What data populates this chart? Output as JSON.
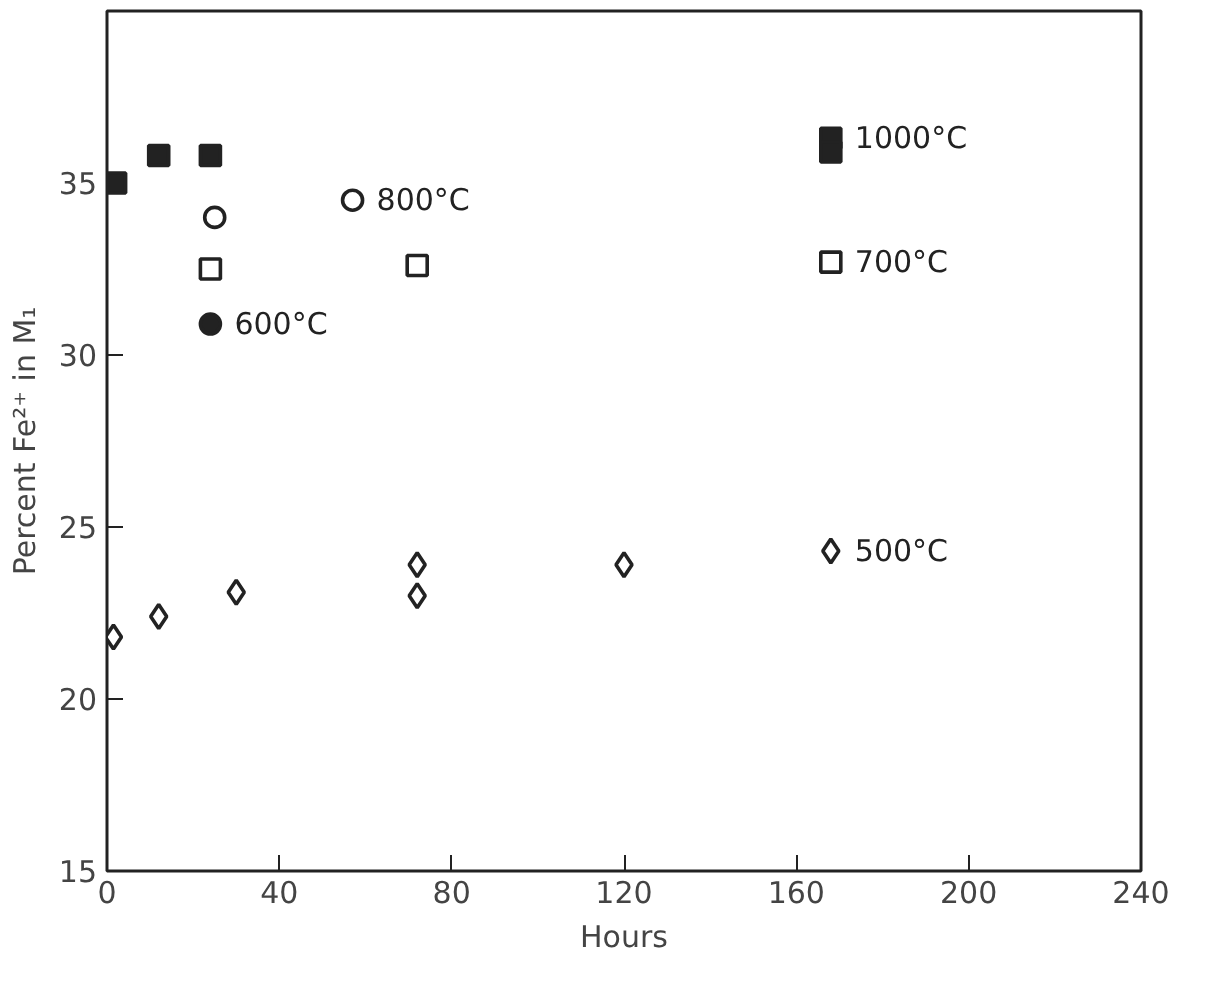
{
  "chart_data": {
    "type": "scatter",
    "xlabel": "Hours",
    "ylabel": "Percent Fe²⁺ in M₁",
    "xlim": [
      0,
      240
    ],
    "ylim": [
      15,
      40
    ],
    "xticks": [
      0,
      40,
      80,
      120,
      160,
      200,
      240
    ],
    "yticks": [
      15,
      20,
      25,
      30,
      35
    ],
    "series": [
      {
        "name": "1000°C",
        "color": "#222222",
        "marker": "square",
        "x": [
          2,
          12,
          24,
          168,
          168
        ],
        "values": [
          35.0,
          35.8,
          35.8,
          36.3,
          35.9
        ]
      },
      {
        "name": "800°C",
        "color": "#ffffff",
        "marker": "circle",
        "x": [
          25,
          57
        ],
        "values": [
          34.0,
          34.5
        ]
      },
      {
        "name": "700°C",
        "color": "#ffffff",
        "marker": "square",
        "x": [
          24,
          72,
          168
        ],
        "values": [
          32.5,
          32.6,
          32.7
        ]
      },
      {
        "name": "600°C",
        "color": "#222222",
        "marker": "circle",
        "x": [
          24
        ],
        "values": [
          30.9
        ]
      },
      {
        "name": "500°C",
        "color": "#ffffff",
        "marker": "diamond",
        "x": [
          1.5,
          12,
          30,
          72,
          72,
          120,
          168
        ],
        "values": [
          21.8,
          22.4,
          23.1,
          23.9,
          23.0,
          23.9,
          24.3
        ]
      }
    ]
  }
}
